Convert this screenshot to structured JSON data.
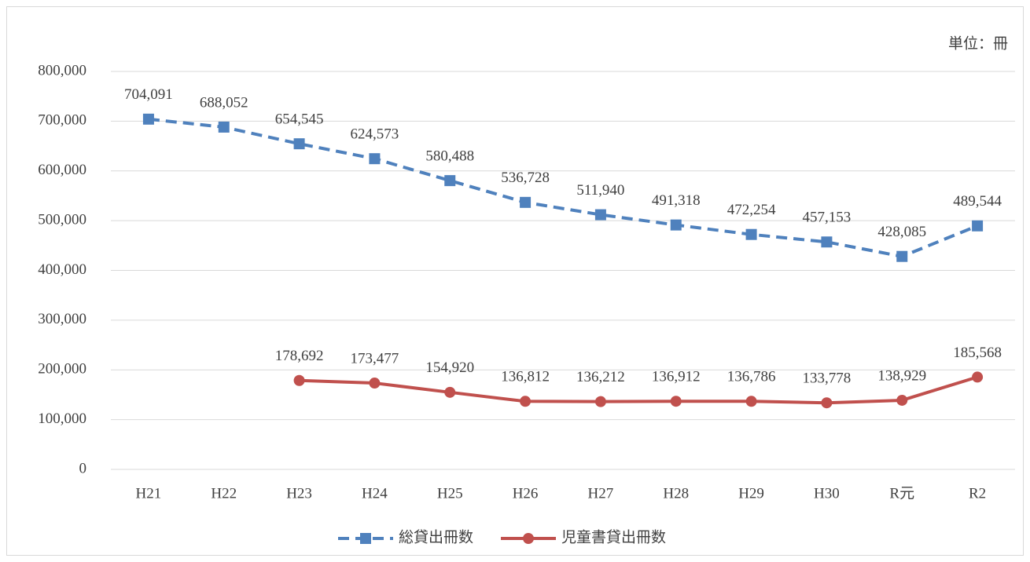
{
  "chart_data": {
    "type": "line",
    "annotation": "単位：冊",
    "categories": [
      "H21",
      "H22",
      "H23",
      "H24",
      "H25",
      "H26",
      "H27",
      "H28",
      "H29",
      "H30",
      "R元",
      "R2"
    ],
    "series": [
      {
        "name": "総貸出冊数",
        "color": "#4f81bd",
        "dashed": true,
        "marker": "square",
        "values": [
          704091,
          688052,
          654545,
          624573,
          580488,
          536728,
          511940,
          491318,
          472254,
          457153,
          428085,
          489544
        ],
        "value_labels": [
          "704,091",
          "688,052",
          "654,545",
          "624,573",
          "580,488",
          "536,728",
          "511,940",
          "491,318",
          "472,254",
          "457,153",
          "428,085",
          "489,544"
        ]
      },
      {
        "name": "児童書貸出冊数",
        "color": "#c0504d",
        "dashed": false,
        "marker": "circle",
        "values": [
          null,
          null,
          178692,
          173477,
          154920,
          136812,
          136212,
          136912,
          136786,
          133778,
          138929,
          185568
        ],
        "value_labels": [
          null,
          null,
          "178,692",
          "173,477",
          "154,920",
          "136,812",
          "136,212",
          "136,912",
          "136,786",
          "133,778",
          "138,929",
          "185,568"
        ]
      }
    ],
    "ylim": [
      0,
      800000
    ],
    "yticks": [
      0,
      {
        "value": 100000,
        "label": "100,000"
      },
      {
        "value": 200000,
        "label": "200,000"
      },
      {
        "value": 300000,
        "label": "300,000"
      },
      {
        "value": 400000,
        "label": "400,000"
      },
      {
        "value": 500000,
        "label": "500,000"
      },
      {
        "value": 600000,
        "label": "600,000"
      },
      {
        "value": 700000,
        "label": "700,000"
      },
      {
        "value": 800000,
        "label": "800,000"
      }
    ],
    "grid": true,
    "legend": "bottom"
  }
}
